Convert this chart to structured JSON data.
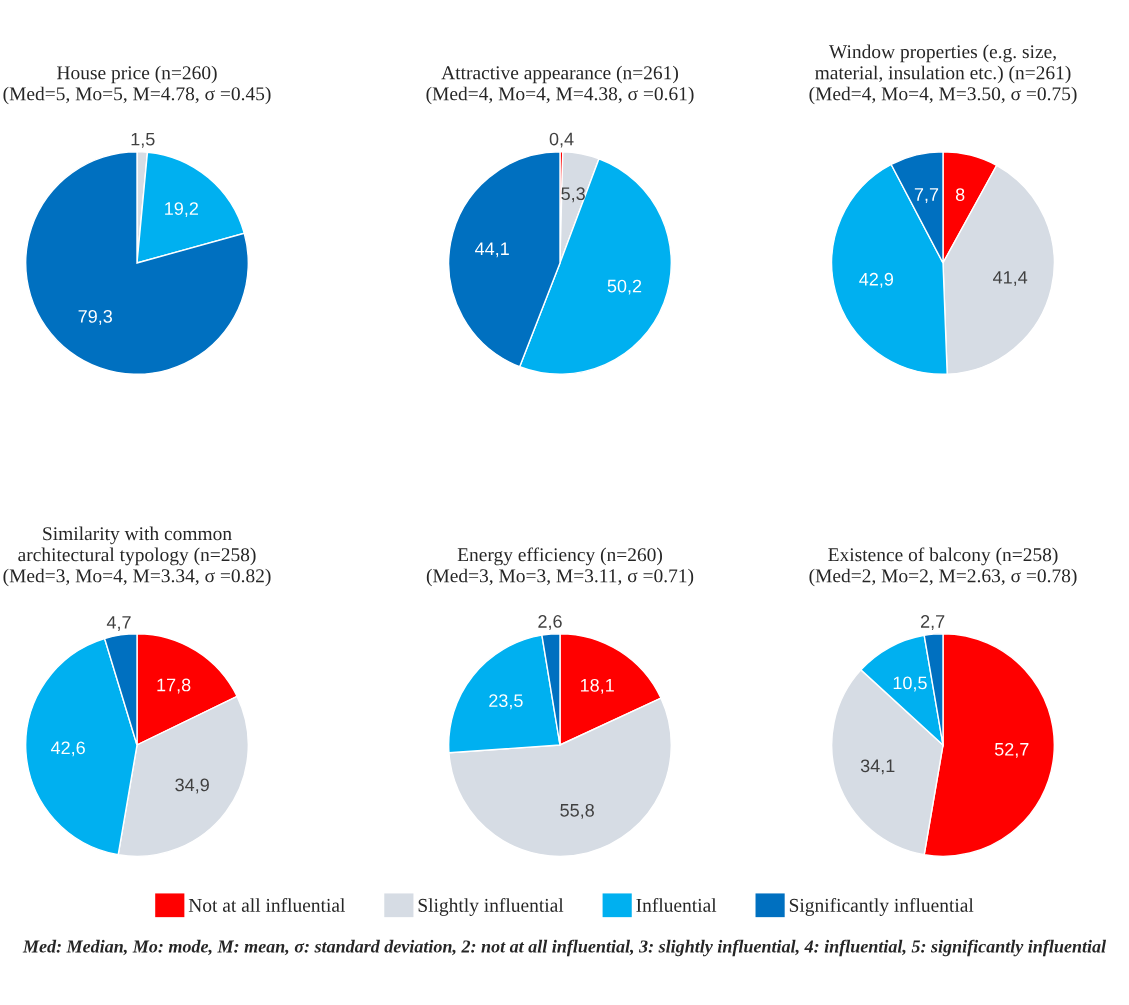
{
  "chart_data": [
    {
      "type": "pie",
      "title": "House price (n=260)\n(Med=5, Mo=5, M=4.78, σ =0.45)",
      "categories": [
        "Not at all influential",
        "Slightly influential",
        "Influential",
        "Significantly influential"
      ],
      "values": [
        0,
        1.5,
        19.2,
        79.3
      ],
      "value_labels": [
        null,
        "1,5",
        "19,2",
        "79,3"
      ],
      "colors": [
        "#ff0000",
        "#d6dce4",
        "#00b0f0",
        "#0070c0"
      ],
      "legend": "bottom"
    },
    {
      "type": "pie",
      "title": "Attractive appearance (n=261)\n(Med=4, Mo=4, M=4.38, σ =0.61)",
      "categories": [
        null,
        null,
        null,
        null
      ],
      "values": [
        0.4,
        5.3,
        50.2,
        44.1
      ],
      "value_labels": [
        "0,4",
        "5,3",
        "50,2",
        "44,1"
      ],
      "colors": [
        "#ff0000",
        "#d6dce4",
        "#00b0f0",
        "#0070c0"
      ]
    },
    {
      "type": "pie",
      "title": "Window properties (e.g. size,\nmaterial, insulation etc.) (n=261)\n(Med=4, Mo=4, M=3.50, σ =0.75)",
      "categories": [
        null,
        null,
        null,
        null
      ],
      "values": [
        8,
        41.4,
        42.9,
        7.7
      ],
      "value_labels": [
        "8",
        "41,4",
        "42,9",
        "7,7"
      ],
      "colors": [
        "#ff0000",
        "#d6dce4",
        "#00b0f0",
        "#0070c0"
      ]
    },
    {
      "type": "pie",
      "title": "Similarity with common\narchitectural typology (n=258)\n(Med=3, Mo=4, M=3.34, σ =0.82)",
      "categories": [
        null,
        null,
        null,
        null
      ],
      "values": [
        17.8,
        34.9,
        42.6,
        4.7
      ],
      "value_labels": [
        "17,8",
        "34,9",
        "42,6",
        "4,7"
      ],
      "colors": [
        "#ff0000",
        "#d6dce4",
        "#00b0f0",
        "#0070c0"
      ]
    },
    {
      "type": "pie",
      "title": "Energy efficiency (n=260)\n(Med=3, Mo=3, M=3.11, σ =0.71)",
      "categories": [
        null,
        null,
        null,
        null
      ],
      "values": [
        18.1,
        55.8,
        23.5,
        2.6
      ],
      "value_labels": [
        "18,1",
        "55,8",
        "23,5",
        "2,6"
      ],
      "colors": [
        "#ff0000",
        "#d6dce4",
        "#00b0f0",
        "#0070c0"
      ]
    },
    {
      "type": "pie",
      "title": "Existence of balcony (n=258)\n(Med=2, Mo=2, M=2.63, σ =0.78)",
      "categories": [
        null,
        null,
        null,
        null
      ],
      "values": [
        52.7,
        34.1,
        10.5,
        2.7
      ],
      "value_labels": [
        "52,7",
        "34,1",
        "10,5",
        "2,7"
      ],
      "colors": [
        "#ff0000",
        "#d6dce4",
        "#00b0f0",
        "#0070c0"
      ],
      "annotations": [
        "Med: Median, Mo: mode, M: mean, σ: standard deviation, 2: not at all influential, 3: slightly influential, 4: influential, 5: significantly influential"
      ]
    }
  ]
}
